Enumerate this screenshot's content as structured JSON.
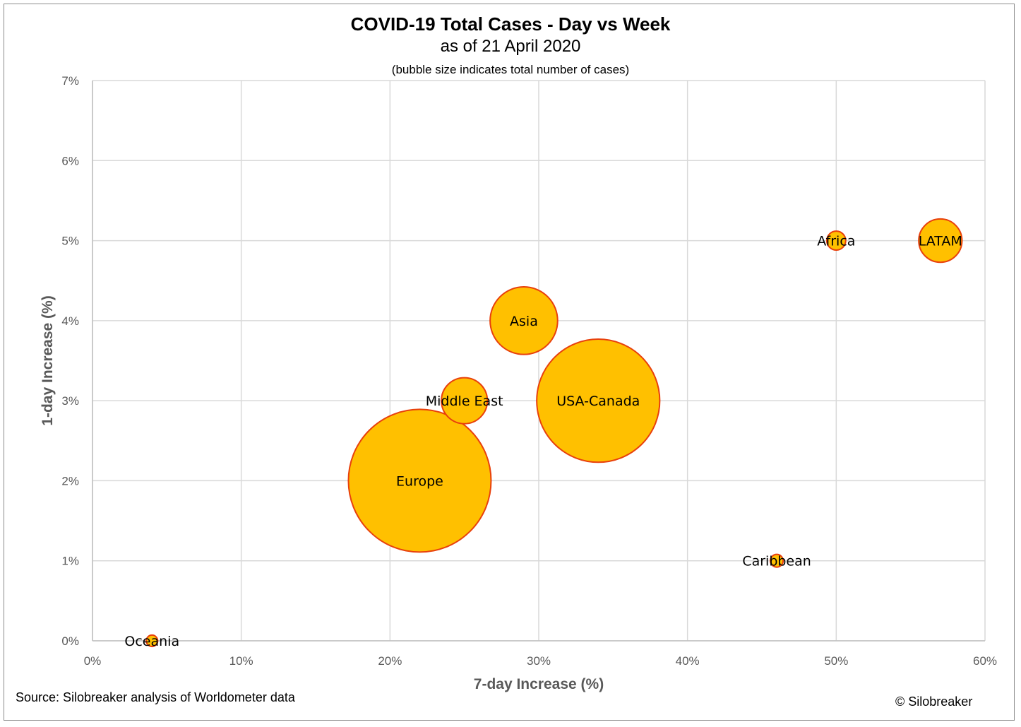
{
  "chart_data": {
    "type": "scatter",
    "title": "COVID-19 Total Cases - Day vs Week",
    "subtitle": "as of 21 April 2020",
    "note": "(bubble size indicates total number of cases)",
    "xlabel": "7-day Increase (%)",
    "ylabel": "1-day Increase (%)",
    "xlim": [
      0,
      60
    ],
    "ylim": [
      0,
      7
    ],
    "xticks": [
      0,
      10,
      20,
      30,
      40,
      50,
      60
    ],
    "yticks": [
      0,
      1,
      2,
      3,
      4,
      5,
      6,
      7
    ],
    "xtick_labels": [
      "0%",
      "10%",
      "20%",
      "30%",
      "40%",
      "50%",
      "60%"
    ],
    "ytick_labels": [
      "0%",
      "1%",
      "2%",
      "3%",
      "4%",
      "5%",
      "6%",
      "7%"
    ],
    "grid": true,
    "bubble_fill": "#FFC000",
    "bubble_stroke": "#E8400C",
    "points": [
      {
        "label": "Oceania",
        "x": 4,
        "y": 0,
        "size": 8
      },
      {
        "label": "Europe",
        "x": 22,
        "y": 2,
        "size": 1250
      },
      {
        "label": "Middle East",
        "x": 25,
        "y": 3,
        "size": 130
      },
      {
        "label": "Asia",
        "x": 29,
        "y": 4,
        "size": 280
      },
      {
        "label": "USA-Canada",
        "x": 34,
        "y": 3,
        "size": 930
      },
      {
        "label": "Caribbean",
        "x": 46,
        "y": 1,
        "size": 10
      },
      {
        "label": "Africa",
        "x": 50,
        "y": 5,
        "size": 22
      },
      {
        "label": "LATAM",
        "x": 57,
        "y": 5,
        "size": 115
      }
    ]
  },
  "footer": {
    "source": "Source: Silobreaker analysis of Worldometer data",
    "copyright": "© Silobreaker"
  }
}
